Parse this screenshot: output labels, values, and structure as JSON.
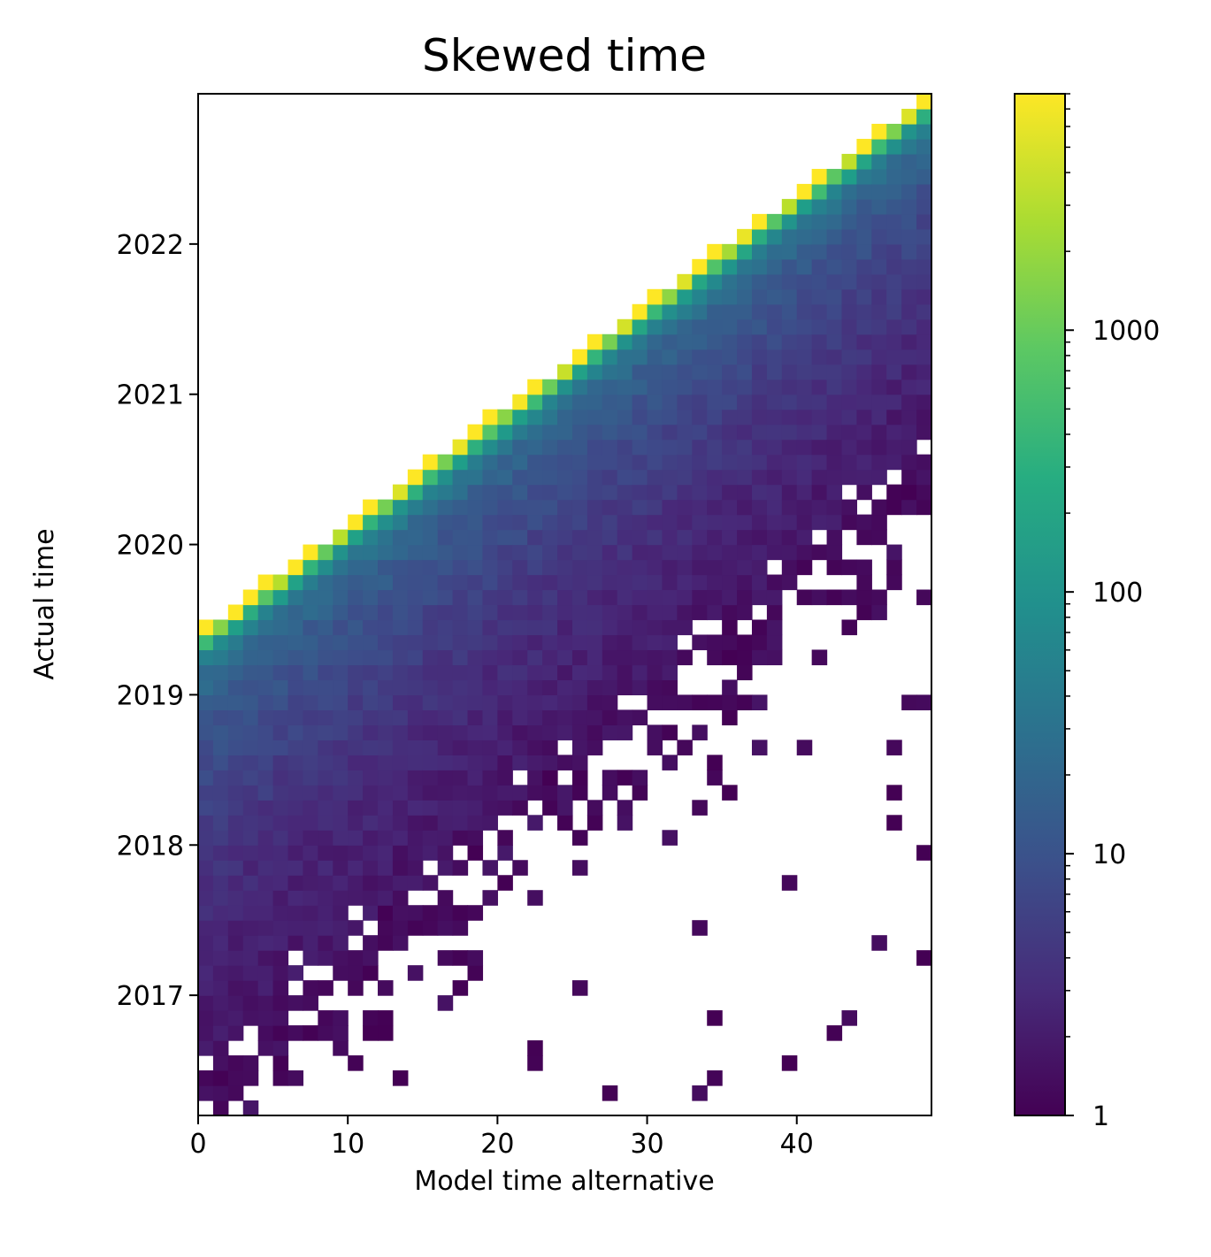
{
  "chart_data": {
    "type": "heatmap",
    "title": "Skewed time",
    "xlabel": "Model time alternative",
    "ylabel": "Actual time",
    "x_ticks": [
      "0",
      "10",
      "20",
      "30",
      "40"
    ],
    "y_ticks": [
      "2017",
      "2018",
      "2019",
      "2020",
      "2021",
      "2022"
    ],
    "x_range": [
      0,
      49
    ],
    "y_range": [
      2016.2,
      2023.0
    ],
    "colorbar": {
      "scale": "log",
      "colormap": "viridis",
      "range": [
        1,
        8000
      ],
      "ticks": [
        "1",
        "10",
        "100",
        "1000"
      ]
    },
    "description_of_cells": {
      "n_x_bins": 49,
      "n_y_bins": 68,
      "band_lower_edge_start_year": 2016.2,
      "band_lower_edge_slope_years_per_unit": 0.0844,
      "band_upper_edge_start_year": 2019.4,
      "band_upper_edge_slope_years_per_unit": 0.0735,
      "peak_count_at_upper_edge": 3000,
      "min_count": 1
    },
    "colors": {
      "low": "#440154",
      "mid": "#21908d",
      "high": "#fde725"
    }
  }
}
